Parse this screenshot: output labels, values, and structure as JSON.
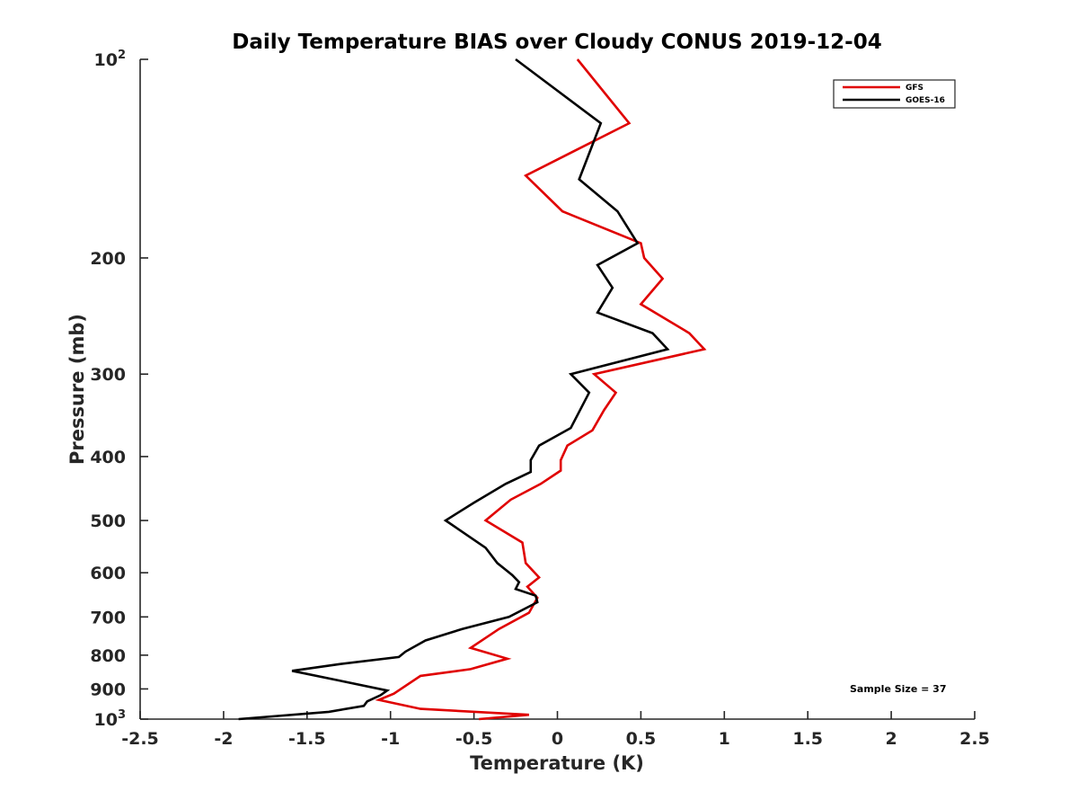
{
  "chart_data": {
    "type": "line",
    "title": "Daily Temperature BIAS over Cloudy CONUS 2019-12-04",
    "xlabel": "Temperature (K)",
    "ylabel": "Pressure (mb)",
    "xlim": [
      -2.5,
      2.5
    ],
    "ylim": [
      1000,
      100
    ],
    "y_scale": "log",
    "y_reversed": true,
    "grid": false,
    "legend_position": "top-right",
    "x_ticks": [
      "-2.5",
      "-2",
      "-1.5",
      "-1",
      "-0.5",
      "0",
      "0.5",
      "1",
      "1.5",
      "2",
      "2.5"
    ],
    "y_ticks": [
      {
        "value": 100,
        "base": "10",
        "exp": "2"
      },
      {
        "value": 200,
        "label": "200"
      },
      {
        "value": 300,
        "label": "300"
      },
      {
        "value": 400,
        "label": "400"
      },
      {
        "value": 500,
        "label": "500"
      },
      {
        "value": 600,
        "label": "600"
      },
      {
        "value": 700,
        "label": "700"
      },
      {
        "value": 800,
        "label": "800"
      },
      {
        "value": 900,
        "label": "900"
      },
      {
        "value": 1000,
        "base": "10",
        "exp": "3"
      }
    ],
    "series": [
      {
        "name": "GFS",
        "color": "#e00000",
        "points": [
          {
            "x": 0.12,
            "y": 100
          },
          {
            "x": 0.43,
            "y": 125
          },
          {
            "x": -0.19,
            "y": 150
          },
          {
            "x": 0.03,
            "y": 170
          },
          {
            "x": 0.5,
            "y": 190
          },
          {
            "x": 0.52,
            "y": 200
          },
          {
            "x": 0.63,
            "y": 215
          },
          {
            "x": 0.5,
            "y": 235
          },
          {
            "x": 0.79,
            "y": 260
          },
          {
            "x": 0.88,
            "y": 275
          },
          {
            "x": 0.22,
            "y": 300
          },
          {
            "x": 0.35,
            "y": 320
          },
          {
            "x": 0.28,
            "y": 340
          },
          {
            "x": 0.21,
            "y": 365
          },
          {
            "x": 0.06,
            "y": 385
          },
          {
            "x": 0.02,
            "y": 405
          },
          {
            "x": 0.02,
            "y": 420
          },
          {
            "x": -0.1,
            "y": 440
          },
          {
            "x": -0.28,
            "y": 465
          },
          {
            "x": -0.43,
            "y": 500
          },
          {
            "x": -0.21,
            "y": 540
          },
          {
            "x": -0.19,
            "y": 580
          },
          {
            "x": -0.11,
            "y": 610
          },
          {
            "x": -0.18,
            "y": 630
          },
          {
            "x": -0.12,
            "y": 655
          },
          {
            "x": -0.17,
            "y": 690
          },
          {
            "x": -0.35,
            "y": 730
          },
          {
            "x": -0.52,
            "y": 780
          },
          {
            "x": -0.3,
            "y": 810
          },
          {
            "x": -0.52,
            "y": 840
          },
          {
            "x": -0.82,
            "y": 860
          },
          {
            "x": -0.98,
            "y": 915
          },
          {
            "x": -1.07,
            "y": 935
          },
          {
            "x": -0.82,
            "y": 965
          },
          {
            "x": -0.17,
            "y": 985
          },
          {
            "x": -0.47,
            "y": 1000
          }
        ]
      },
      {
        "name": "GOES-16",
        "color": "#000000",
        "points": [
          {
            "x": -0.25,
            "y": 100
          },
          {
            "x": 0.26,
            "y": 125
          },
          {
            "x": 0.13,
            "y": 152
          },
          {
            "x": 0.36,
            "y": 170
          },
          {
            "x": 0.48,
            "y": 190
          },
          {
            "x": 0.24,
            "y": 205
          },
          {
            "x": 0.33,
            "y": 222
          },
          {
            "x": 0.24,
            "y": 242
          },
          {
            "x": 0.57,
            "y": 260
          },
          {
            "x": 0.66,
            "y": 275
          },
          {
            "x": 0.08,
            "y": 300
          },
          {
            "x": 0.19,
            "y": 320
          },
          {
            "x": 0.08,
            "y": 362
          },
          {
            "x": -0.11,
            "y": 385
          },
          {
            "x": -0.16,
            "y": 405
          },
          {
            "x": -0.16,
            "y": 422
          },
          {
            "x": -0.31,
            "y": 440
          },
          {
            "x": -0.5,
            "y": 470
          },
          {
            "x": -0.67,
            "y": 500
          },
          {
            "x": -0.43,
            "y": 550
          },
          {
            "x": -0.36,
            "y": 580
          },
          {
            "x": -0.27,
            "y": 605
          },
          {
            "x": -0.23,
            "y": 620
          },
          {
            "x": -0.25,
            "y": 635
          },
          {
            "x": -0.13,
            "y": 650
          },
          {
            "x": -0.12,
            "y": 665
          },
          {
            "x": -0.29,
            "y": 700
          },
          {
            "x": -0.57,
            "y": 730
          },
          {
            "x": -0.79,
            "y": 760
          },
          {
            "x": -0.91,
            "y": 790
          },
          {
            "x": -0.95,
            "y": 805
          },
          {
            "x": -1.3,
            "y": 825
          },
          {
            "x": -1.59,
            "y": 845
          },
          {
            "x": -1.3,
            "y": 875
          },
          {
            "x": -1.02,
            "y": 905
          },
          {
            "x": -1.06,
            "y": 920
          },
          {
            "x": -1.14,
            "y": 940
          },
          {
            "x": -1.16,
            "y": 955
          },
          {
            "x": -1.37,
            "y": 975
          },
          {
            "x": -1.91,
            "y": 1000
          }
        ]
      }
    ],
    "annotations": [
      "Sample Size = 37"
    ]
  }
}
